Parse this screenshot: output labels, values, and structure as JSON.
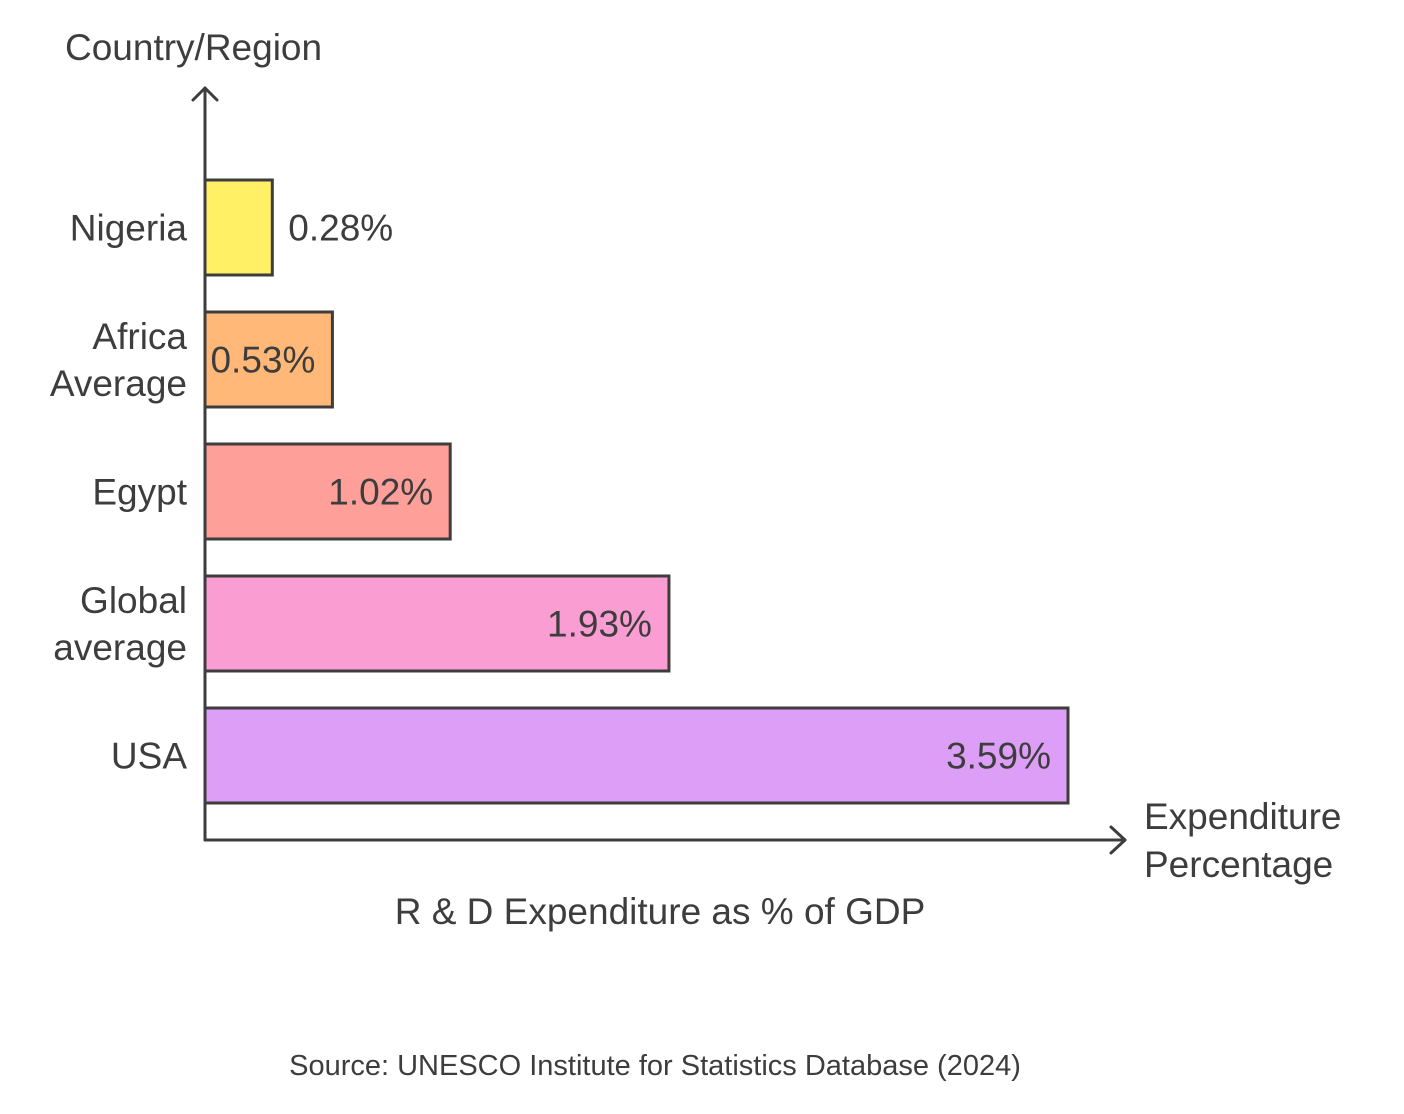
{
  "chart_data": {
    "type": "bar",
    "orientation": "horizontal",
    "title": "R & D Expenditure as % of GDP",
    "xlabel": "Expenditure Percentage",
    "xlabel_lines": [
      "Expenditure",
      "Percentage"
    ],
    "ylabel": "Country/Region",
    "xlim": [
      0,
      3.59
    ],
    "grid": false,
    "source": "Source: UNESCO Institute for Statistics Database (2024)",
    "categories": [
      "Nigeria",
      "Africa Average",
      "Egypt",
      "Global average",
      "USA"
    ],
    "category_lines": [
      [
        "Nigeria"
      ],
      [
        "Africa",
        "Average"
      ],
      [
        "Egypt"
      ],
      [
        "Global",
        "average"
      ],
      [
        "USA"
      ]
    ],
    "values": [
      0.28,
      0.53,
      1.02,
      1.93,
      3.59
    ],
    "value_labels": [
      "0.28%",
      "0.53%",
      "1.02%",
      "1.93%",
      "3.59%"
    ],
    "colors": [
      "#fff066",
      "#ffb877",
      "#fe9f99",
      "#f99dd2",
      "#dd9ef7"
    ]
  }
}
